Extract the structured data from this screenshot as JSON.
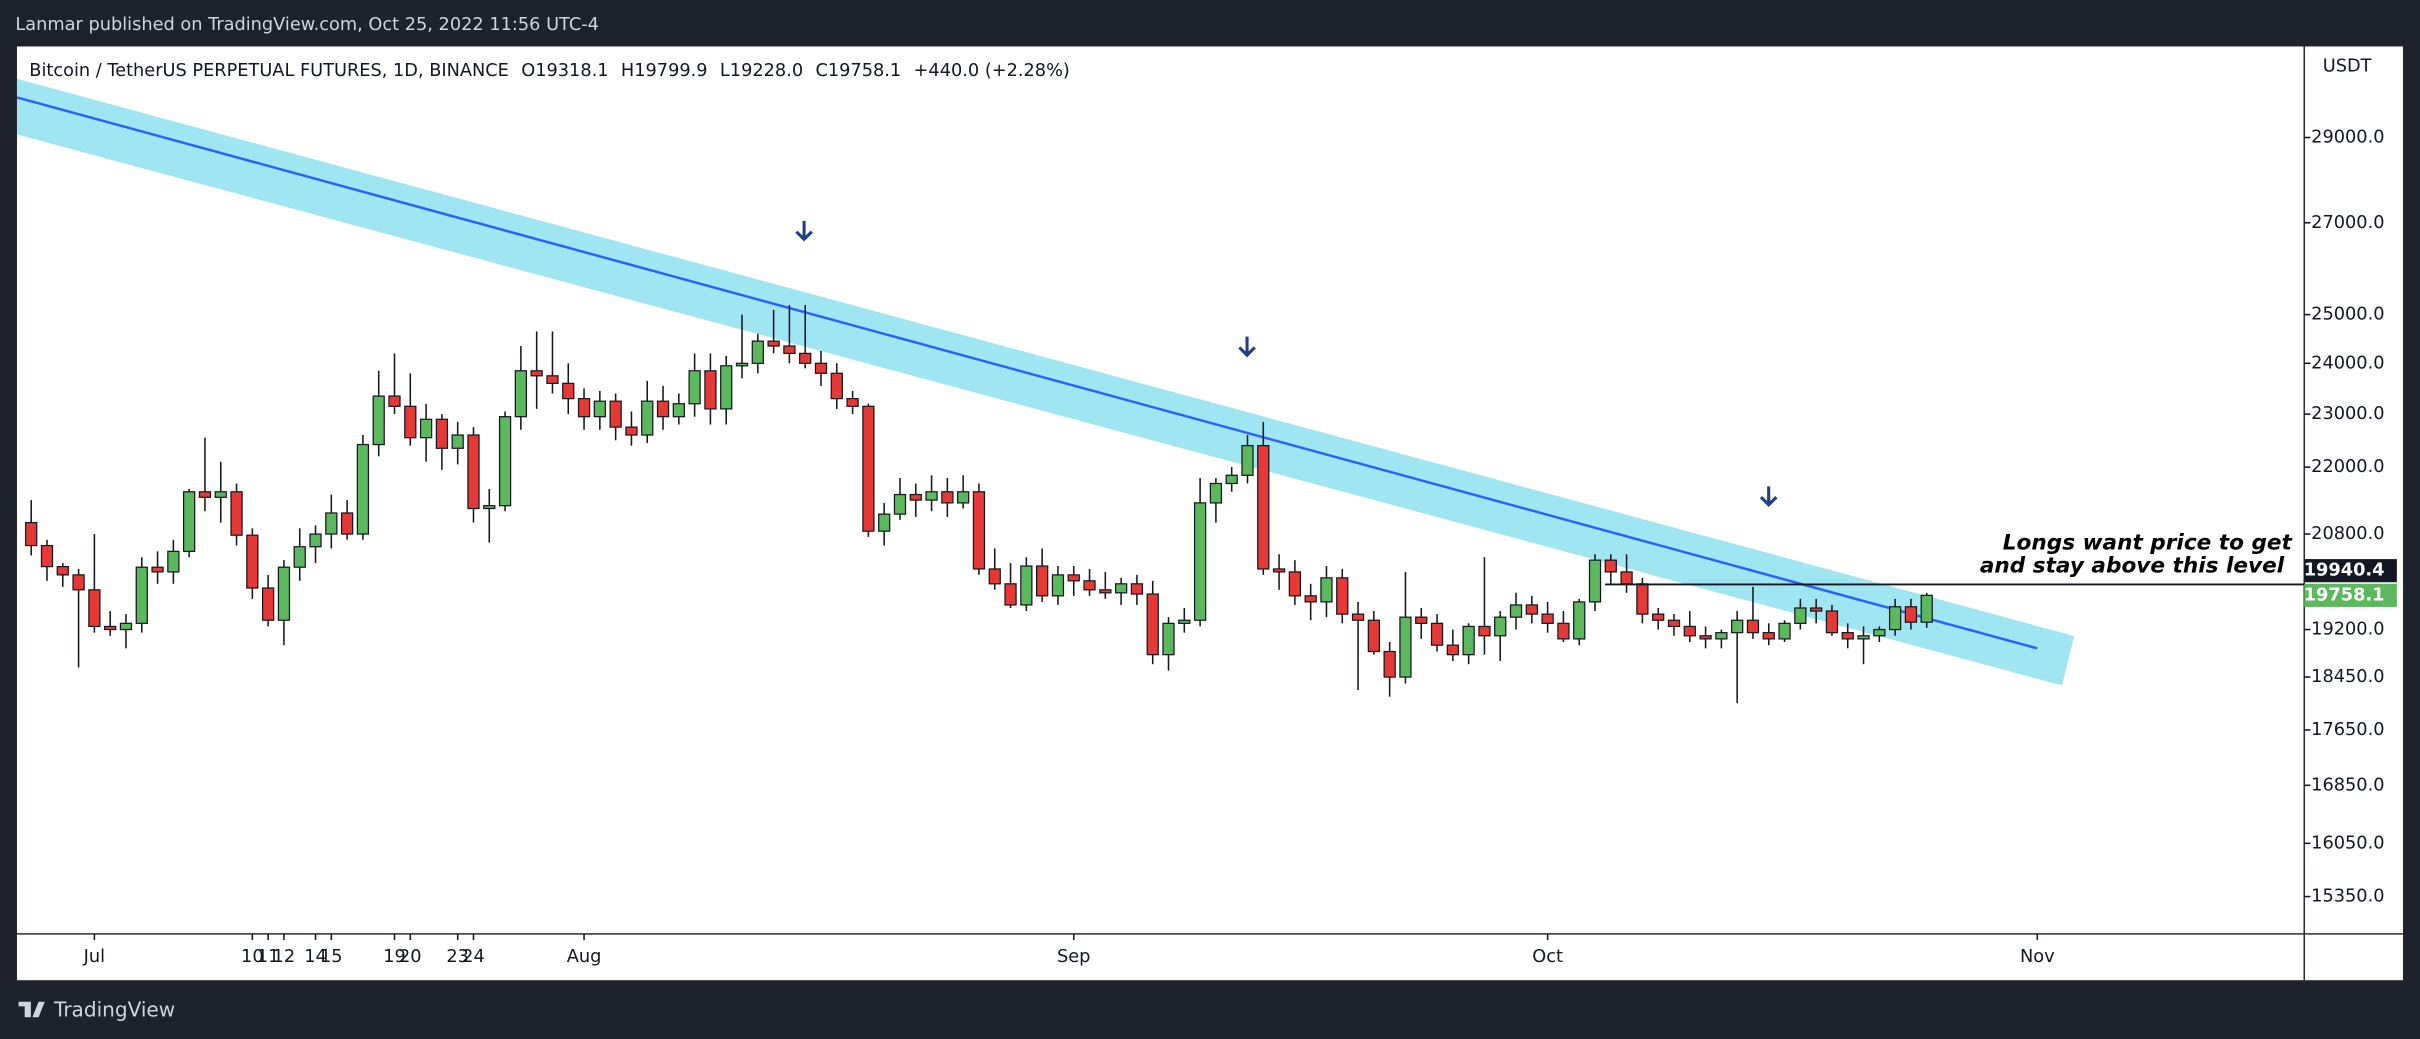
{
  "header": {
    "byline": "Lanmar published on TradingView.com, Oct 25, 2022 11:56 UTC-4",
    "brand": "TradingView"
  },
  "chart_data": {
    "type": "candlestick",
    "title": "Bitcoin / TetherUS PERPETUAL FUTURES, 1D, BINANCE",
    "ohlc_legend": [
      "O19318.1",
      "H19799.9",
      "L19228.0",
      "C19758.1",
      "+440.0 (+2.28%)"
    ],
    "y_unit": "USDT",
    "log_scale": true,
    "up_color": "#5cb85c",
    "down_color": "#e53935",
    "x": [
      -4,
      -3,
      -2,
      -1,
      0,
      1,
      2,
      3,
      4,
      5,
      6,
      7,
      8,
      9,
      10,
      11,
      12,
      13,
      14,
      15,
      16,
      17,
      18,
      19,
      20,
      21,
      22,
      23,
      24,
      25,
      26,
      27,
      28,
      29,
      30,
      31,
      32,
      33,
      34,
      35,
      36,
      37,
      38,
      39,
      40,
      41,
      42,
      43,
      44,
      45,
      46,
      47,
      48,
      49,
      50,
      51,
      52,
      53,
      54,
      55,
      56,
      57,
      58,
      59,
      60,
      61,
      62,
      63,
      64,
      65,
      66,
      67,
      68,
      69,
      70,
      71,
      72,
      73,
      74,
      75,
      76,
      77,
      78,
      79,
      80,
      81,
      82,
      83,
      84,
      85,
      86,
      87,
      88,
      89,
      90,
      91,
      92,
      93,
      94,
      95,
      96,
      97,
      98,
      99,
      100,
      101,
      102,
      103,
      104,
      105,
      106,
      107,
      108,
      109,
      110,
      111,
      112,
      113,
      114,
      115,
      116
    ],
    "open": [
      21000,
      20600,
      20240,
      20100,
      19850,
      19250,
      19200,
      19300,
      20230,
      20150,
      20500,
      21550,
      21450,
      21550,
      20780,
      19880,
      19350,
      20230,
      20580,
      20800,
      21170,
      20800,
      22420,
      23350,
      23150,
      22550,
      22900,
      22350,
      22600,
      21250,
      21300,
      22950,
      23850,
      23750,
      23600,
      23300,
      22950,
      23250,
      22750,
      22600,
      23250,
      22950,
      23200,
      23850,
      23100,
      23950,
      24000,
      24450,
      24350,
      24200,
      24000,
      23800,
      23300,
      23150,
      20850,
      21150,
      21500,
      21400,
      21550,
      21350,
      21550,
      20200,
      19950,
      19600,
      20250,
      19750,
      20100,
      20000,
      19850,
      19800,
      19950,
      19780,
      18800,
      19300,
      19350,
      21350,
      21700,
      21850,
      22400,
      20200,
      20150,
      19750,
      19650,
      20050,
      19450,
      19350,
      18850,
      18450,
      19400,
      19300,
      18950,
      18800,
      19250,
      19100,
      19400,
      19600,
      19450,
      19300,
      19050,
      19650,
      20350,
      20150,
      19950,
      19450,
      19350,
      19250,
      19100,
      19050,
      19150,
      19350,
      19150,
      19050,
      19300,
      19550,
      19500,
      19150,
      19050,
      19100,
      19200,
      19570,
      19318.1
    ],
    "high": [
      21400,
      20700,
      20300,
      20200,
      20800,
      19500,
      19450,
      20400,
      20500,
      20700,
      21600,
      22550,
      22100,
      21700,
      20900,
      20100,
      20350,
      20900,
      20950,
      21500,
      21400,
      22600,
      23850,
      24200,
      23800,
      23200,
      23000,
      22850,
      22750,
      21600,
      23050,
      24350,
      24650,
      24650,
      24000,
      23500,
      23450,
      23400,
      23050,
      23650,
      23550,
      23400,
      24200,
      24200,
      24150,
      25000,
      24600,
      25100,
      25200,
      25200,
      24250,
      24000,
      23450,
      23200,
      21350,
      21800,
      21700,
      21850,
      21800,
      21850,
      21700,
      20550,
      20300,
      20400,
      20550,
      20250,
      20250,
      20200,
      20150,
      20050,
      20100,
      20000,
      19400,
      19550,
      21800,
      21800,
      22000,
      22600,
      22850,
      20450,
      20350,
      19950,
      20250,
      20200,
      19650,
      19500,
      19000,
      20150,
      19550,
      19450,
      19200,
      19300,
      20400,
      19500,
      19800,
      19750,
      19650,
      19500,
      19700,
      20450,
      20450,
      20450,
      20050,
      19550,
      19450,
      19500,
      19250,
      19200,
      19500,
      19900,
      19300,
      19350,
      19700,
      19700,
      19600,
      19300,
      19250,
      19250,
      19700,
      19700,
      19799.9
    ],
    "low": [
      20430,
      20000,
      19900,
      18600,
      19150,
      19100,
      18900,
      19150,
      19950,
      19950,
      20400,
      21200,
      21000,
      20600,
      19700,
      19250,
      18950,
      20000,
      20300,
      20550,
      20700,
      20700,
      22200,
      23000,
      22400,
      22100,
      21950,
      22050,
      21000,
      20650,
      21200,
      22700,
      23100,
      23400,
      23000,
      22700,
      22700,
      22500,
      22400,
      22450,
      22700,
      22800,
      22950,
      22800,
      22800,
      23700,
      23800,
      24200,
      24000,
      23900,
      23550,
      23100,
      23000,
      20750,
      20600,
      21050,
      21100,
      21200,
      21100,
      21250,
      20100,
      19850,
      19550,
      19500,
      19650,
      19600,
      19750,
      19750,
      19700,
      19600,
      19600,
      18650,
      18550,
      19150,
      19250,
      21000,
      21550,
      21700,
      20100,
      19850,
      19600,
      19350,
      19400,
      19300,
      18250,
      18800,
      18150,
      18350,
      19050,
      18850,
      18700,
      18650,
      18800,
      18700,
      19200,
      19300,
      19150,
      19000,
      18950,
      19500,
      19950,
      19800,
      19300,
      19200,
      19100,
      19000,
      18900,
      18900,
      18050,
      19050,
      18950,
      19000,
      19200,
      19300,
      19100,
      18900,
      18650,
      19000,
      19100,
      19200,
      19228.0
    ],
    "close": [
      20600,
      20240,
      20100,
      19850,
      19250,
      19200,
      19300,
      20230,
      20150,
      20500,
      21550,
      21450,
      21550,
      20780,
      19880,
      19350,
      20230,
      20580,
      20800,
      21170,
      20800,
      22420,
      23350,
      23150,
      22550,
      22900,
      22350,
      22600,
      21250,
      21300,
      22950,
      23850,
      23750,
      23600,
      23300,
      22950,
      23250,
      22750,
      22600,
      23250,
      22950,
      23200,
      23850,
      23100,
      23950,
      24000,
      24450,
      24350,
      24200,
      24000,
      23800,
      23300,
      23150,
      20850,
      21150,
      21500,
      21400,
      21550,
      21350,
      21550,
      20200,
      19950,
      19600,
      20250,
      19750,
      20100,
      20000,
      19850,
      19800,
      19950,
      19780,
      18800,
      19300,
      19350,
      21350,
      21700,
      21850,
      22400,
      20200,
      20150,
      19750,
      19650,
      20050,
      19450,
      19350,
      18850,
      18450,
      19400,
      19300,
      18950,
      18800,
      19250,
      19100,
      19400,
      19600,
      19450,
      19300,
      19050,
      19650,
      20350,
      20150,
      19950,
      19450,
      19350,
      19250,
      19100,
      19050,
      19150,
      19350,
      19150,
      19050,
      19300,
      19550,
      19500,
      19150,
      19050,
      19100,
      19200,
      19570,
      19318.1,
      19758.1
    ],
    "xlim": [
      -4.9,
      139.9
    ],
    "xticks": [
      {
        "value": 0,
        "label": "Jul"
      },
      11,
      19,
      {
        "value": 31,
        "label": "Aug"
      },
      15,
      23,
      {
        "value": 62,
        "label": "Sep"
      },
      12,
      20,
      {
        "value": 92,
        "label": "Oct"
      },
      10,
      24,
      {
        "value": 123,
        "label": "Nov"
      },
      14
    ],
    "ylim": [
      14877,
      31300
    ],
    "yticks": [
      {
        "value": 29000,
        "label": "29000.0"
      },
      {
        "value": 27000,
        "label": "27000.0"
      },
      {
        "value": 25000,
        "label": "25000.0"
      },
      {
        "value": 24000,
        "label": "24000.0"
      },
      {
        "value": 23000,
        "label": "23000.0"
      },
      {
        "value": 22000,
        "label": "22000.0"
      },
      {
        "value": 20800,
        "label": "20800.0"
      },
      {
        "value": 19200,
        "label": "19200.0"
      },
      {
        "value": 18450,
        "label": "18450.0"
      },
      {
        "value": 17650,
        "label": "17650.0"
      },
      {
        "value": 16850,
        "label": "16850.0"
      },
      {
        "value": 16050,
        "label": "16050.0"
      },
      {
        "value": 15350,
        "label": "15350.0"
      }
    ],
    "price_lines": [
      {
        "value": 19940.4,
        "color": "#131722",
        "line": true
      },
      {
        "value": 19758.1,
        "color": "#5cb85c",
        "line": false
      }
    ],
    "annotation": [
      "Longs want price to get",
      "and stay above this level"
    ]
  }
}
